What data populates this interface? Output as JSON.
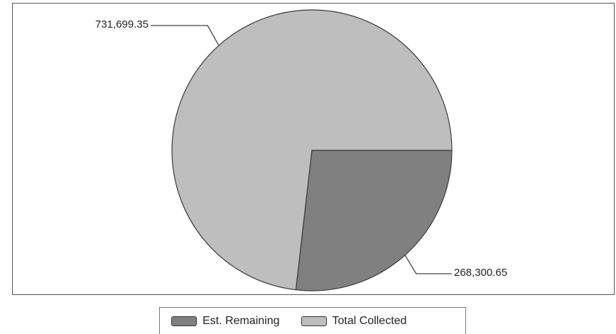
{
  "chart_data": {
    "type": "pie",
    "title": "",
    "slices": [
      {
        "label": "Est. Remaining",
        "value": 268300.65,
        "display": "268,300.65",
        "color": "#808080"
      },
      {
        "label": "Total Collected",
        "value": 731699.35,
        "display": "731,699.35",
        "color": "#bebebe"
      }
    ],
    "legend_position": "bottom",
    "start_angle_deg": 0,
    "direction": "clockwise"
  },
  "legend": {
    "items": [
      {
        "label": "Est. Remaining",
        "color": "#808080"
      },
      {
        "label": "Total Collected",
        "color": "#bebebe"
      }
    ]
  }
}
